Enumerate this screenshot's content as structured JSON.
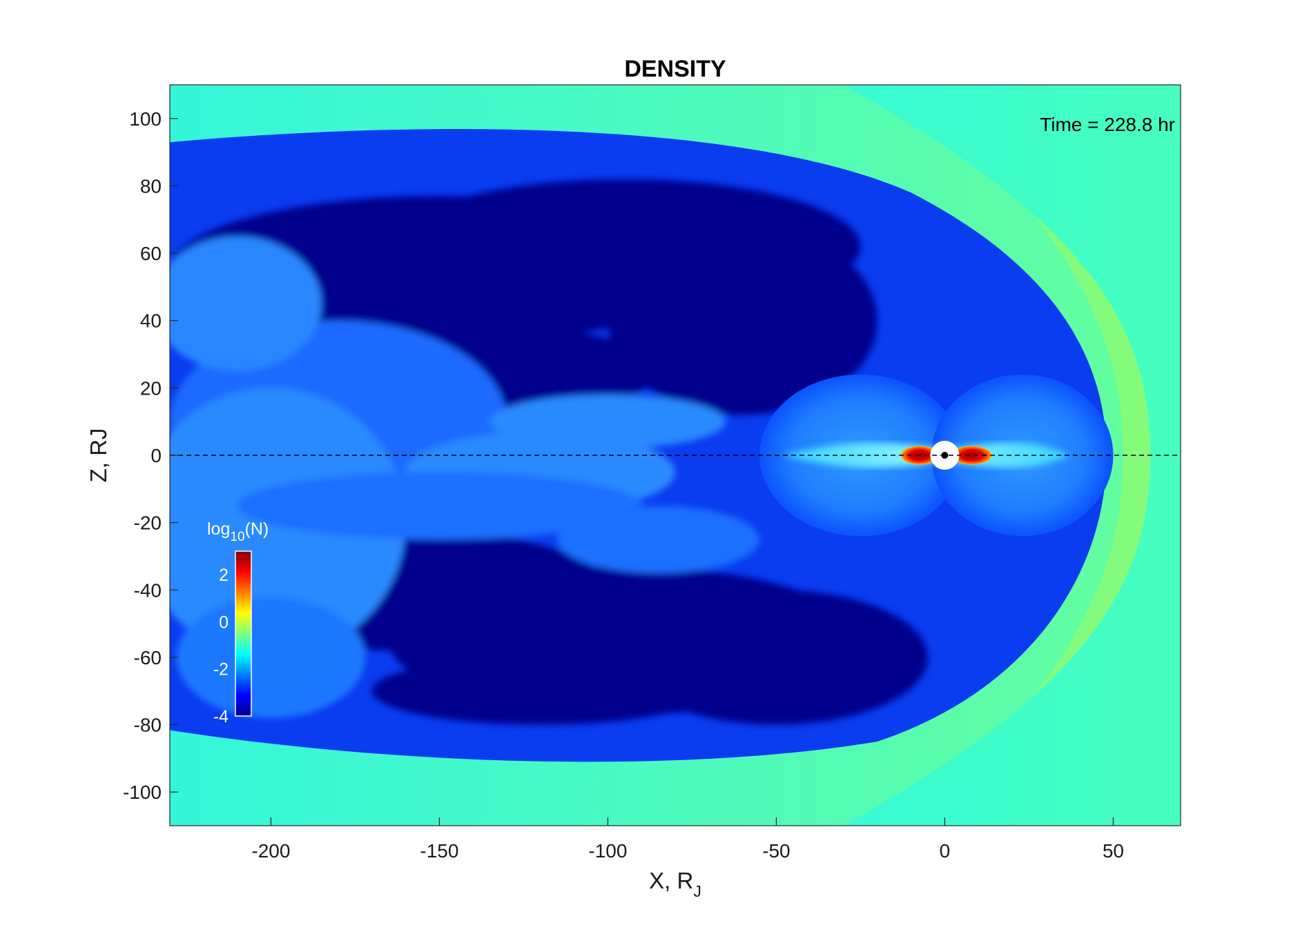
{
  "chart_data": {
    "type": "heatmap",
    "title": "DENSITY",
    "xlabel": "X, R",
    "xlabel_sub": "J",
    "ylabel": "Z, RJ",
    "xlim": [
      -230,
      70
    ],
    "ylim": [
      -110,
      110
    ],
    "x_ticks": [
      -200,
      -150,
      -100,
      -50,
      0,
      50
    ],
    "y_ticks": [
      -100,
      -80,
      -60,
      -40,
      -20,
      0,
      20,
      40,
      60,
      80,
      100
    ],
    "annotation": "Time = 228.8 hr",
    "reference_line": {
      "axis": "z",
      "value": 0,
      "style": "dashed"
    },
    "colorbar": {
      "label": "log",
      "label_sub": "10",
      "label_suffix": "(N)",
      "min": -4,
      "max": 3,
      "ticks": [
        2,
        0,
        -2,
        -4
      ],
      "colormap": "jet",
      "placement": "lower-left inside"
    },
    "regions": [
      {
        "name": "solar wind",
        "log10_density": -1.5,
        "color": "#3dfdc2"
      },
      {
        "name": "magnetosheath",
        "log10_density": -1.0,
        "color": "#7cfb86"
      },
      {
        "name": "magnetosphere lobes",
        "log10_density": -3.9,
        "color": "#00008c"
      },
      {
        "name": "plasma sheet",
        "log10_density": -2.3,
        "color": "#0b5bff"
      },
      {
        "name": "inner torus",
        "log10_density": 3.0,
        "color": "#c40000"
      }
    ],
    "bow_shock_nose_x": 61,
    "magnetopause_nose_x": 48,
    "planet_position": [
      0,
      0
    ]
  }
}
